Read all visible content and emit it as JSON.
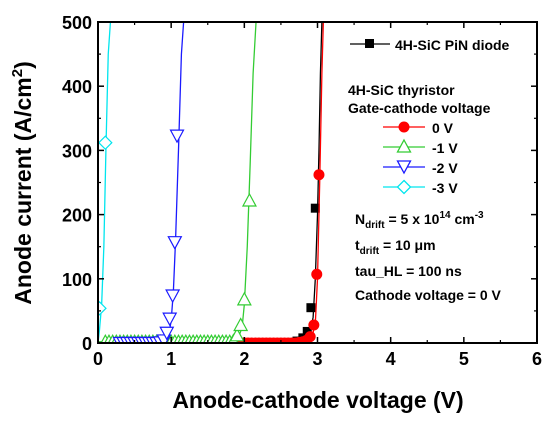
{
  "chart_data": {
    "type": "line",
    "xlabel": "Anode-cathode voltage (V)",
    "ylabel_main": "Anode current (A/cm",
    "ylabel_sup": "2",
    "ylabel_close": ")",
    "xlim": [
      0,
      6
    ],
    "ylim": [
      0,
      500
    ],
    "xticks": [
      "0",
      "1",
      "2",
      "3",
      "4",
      "5",
      "6"
    ],
    "yticks": [
      "0",
      "100",
      "200",
      "300",
      "400",
      "500"
    ],
    "grid": false,
    "series": [
      {
        "name": "4H-SiC PiN diode",
        "color": "#000000",
        "marker": "square",
        "line_x": [
          0,
          2.6,
          2.75,
          2.85,
          2.9,
          2.94,
          2.97,
          3.0,
          3.02,
          3.04,
          3.06
        ],
        "line_y": [
          0,
          0,
          1,
          6,
          18,
          40,
          100,
          200,
          300,
          420,
          500
        ],
        "marker_x": [
          2.72,
          2.8,
          2.86,
          2.91,
          2.97
        ],
        "marker_y": [
          3,
          8,
          18,
          55,
          210
        ]
      },
      {
        "name": "0 V",
        "color": "#ff0000",
        "marker": "circle",
        "line_x": [
          0,
          2.7,
          2.8,
          2.88,
          2.93,
          2.97,
          3.0,
          3.03,
          3.06,
          3.08
        ],
        "line_y": [
          0,
          0,
          1,
          4,
          12,
          30,
          100,
          250,
          420,
          500
        ],
        "marker_x": [
          1.6,
          1.65,
          1.7,
          1.75,
          1.8,
          1.85,
          1.9,
          1.95,
          2.0,
          2.05,
          2.1,
          2.15,
          2.2,
          2.25,
          2.3,
          2.35,
          2.4,
          2.45,
          2.5,
          2.55,
          2.6,
          2.65,
          2.7,
          2.75,
          2.8,
          2.85,
          2.9,
          2.95,
          2.99,
          3.02
        ],
        "marker_y": [
          0,
          0,
          0,
          0,
          0,
          0,
          0,
          0,
          0,
          0,
          0,
          0,
          0,
          0,
          0,
          0,
          0,
          0,
          0,
          0,
          0,
          0,
          0,
          1,
          2,
          4,
          10,
          28,
          107,
          262
        ]
      },
      {
        "name": "-1 V",
        "color": "#33cc33",
        "marker": "triangle-up",
        "line_x": [
          0,
          1.85,
          1.92,
          1.97,
          2.0,
          2.04,
          2.08,
          2.12,
          2.16
        ],
        "line_y": [
          2,
          2,
          8,
          25,
          60,
          150,
          280,
          420,
          500
        ],
        "marker_x": [
          0.1,
          0.15,
          0.2,
          0.25,
          0.3,
          0.35,
          0.4,
          0.45,
          0.5,
          0.55,
          0.6,
          0.65,
          0.7,
          0.75,
          0.8,
          0.85,
          0.9,
          0.95,
          1.0,
          1.05,
          1.1,
          1.15,
          1.2,
          1.25,
          1.3,
          1.35,
          1.4,
          1.45,
          1.5,
          1.55,
          1.6,
          1.65,
          1.7,
          1.75,
          1.8,
          1.85,
          1.9,
          1.95,
          2.0,
          2.07
        ],
        "marker_y": [
          2,
          2,
          2,
          2,
          2,
          2,
          2,
          2,
          2,
          2,
          2,
          2,
          2,
          2,
          2,
          2,
          2,
          2,
          2,
          2,
          2,
          2,
          2,
          2,
          2,
          2,
          2,
          2,
          2,
          2,
          2,
          2,
          2,
          2,
          2,
          3,
          12,
          28,
          68,
          222
        ]
      },
      {
        "name": "-2 V",
        "color": "#1a1aff",
        "marker": "triangle-down",
        "line_x": [
          0,
          0.85,
          0.92,
          0.97,
          1.0,
          1.03,
          1.06,
          1.1,
          1.14,
          1.17
        ],
        "line_y": [
          0,
          0,
          4,
          14,
          35,
          80,
          160,
          300,
          450,
          500
        ],
        "marker_x": [
          0.3,
          0.35,
          0.4,
          0.45,
          0.5,
          0.55,
          0.6,
          0.65,
          0.7,
          0.75,
          0.8,
          0.85,
          0.9,
          0.94,
          0.98,
          1.02,
          1.05,
          1.08
        ],
        "marker_y": [
          0,
          0,
          0,
          0,
          0,
          0,
          0,
          0,
          0,
          0,
          0,
          1,
          4,
          16,
          38,
          74,
          157,
          323
        ]
      },
      {
        "name": "-3 V",
        "color": "#00e5ee",
        "marker": "diamond",
        "line_x": [
          0,
          0.02,
          0.05,
          0.08,
          0.11,
          0.14,
          0.17
        ],
        "line_y": [
          0,
          20,
          60,
          150,
          310,
          450,
          500
        ],
        "marker_x": [
          0.02,
          0.1
        ],
        "marker_y": [
          54,
          312
        ]
      }
    ],
    "legend_pin": "4H-SiC PiN diode",
    "legend_group_title": "4H-SiC thyristor",
    "legend_group_subtitle": "Gate-cathode voltage",
    "legend_entries": [
      "0 V",
      "-1 V",
      "-2 V",
      "-3 V"
    ],
    "annotations": [
      {
        "base": "N",
        "sub": "drift",
        "mid": " = 5 x 10",
        "sup": "14",
        "tail": " cm",
        "sup2": "-3"
      },
      {
        "base": "t",
        "sub": "drift",
        "mid": " = 10 μm",
        "sup": "",
        "tail": "",
        "sup2": ""
      },
      {
        "base": "tau_HL = 100 ns",
        "sub": "",
        "mid": "",
        "sup": "",
        "tail": "",
        "sup2": ""
      },
      {
        "base": "Cathode voltage = 0 V",
        "sub": "",
        "mid": "",
        "sup": "",
        "tail": "",
        "sup2": ""
      }
    ]
  }
}
